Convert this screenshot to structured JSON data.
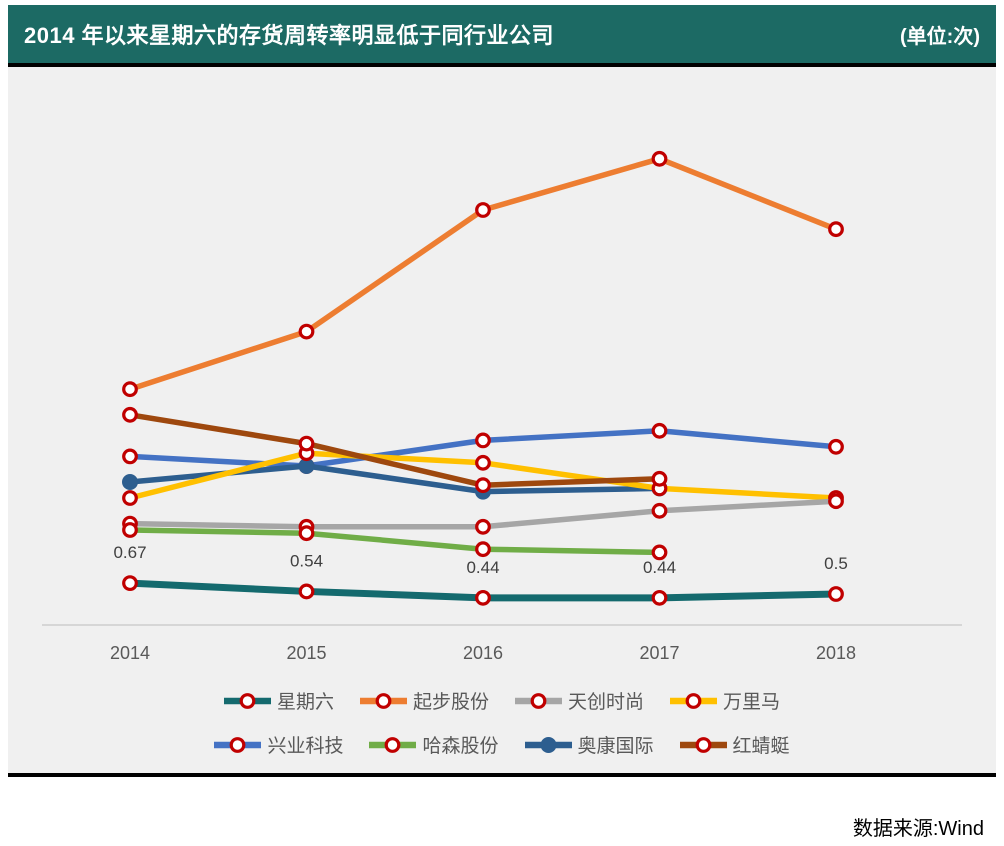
{
  "header": {
    "title": "2014 年以来星期六的存货周转率明显低于同行业公司",
    "unit": "(单位:次)"
  },
  "footer": {
    "source": "数据来源:Wind"
  },
  "colors": {
    "header_bg": "#1c6a64",
    "panel_bg": "#f0f0f0",
    "separator": "#000000",
    "axis_line": "#d6d6d6",
    "tick_label": "#595959",
    "data_label": "#404040",
    "legend_text": "#595959",
    "marker_ring": "#c00000",
    "marker_fill": "#ffffff"
  },
  "chart_data": {
    "type": "line",
    "title": "2014 年以来星期六的存货周转率明显低于同行业公司",
    "unit": "次",
    "categories": [
      "2014",
      "2015",
      "2016",
      "2017",
      "2018"
    ],
    "series": [
      {
        "name": "星期六",
        "color": "#146a6e",
        "marker": "ring",
        "values": [
          0.67,
          0.54,
          0.44,
          0.44,
          0.5
        ]
      },
      {
        "name": "起步股份",
        "color": "#ed7d31",
        "marker": "ring",
        "values": [
          3.7,
          4.6,
          6.5,
          7.3,
          6.2
        ]
      },
      {
        "name": "天创时尚",
        "color": "#a6a6a6",
        "marker": "ring",
        "values": [
          1.6,
          1.55,
          1.55,
          1.8,
          1.95
        ]
      },
      {
        "name": "万里马",
        "color": "#ffc000",
        "marker": "ring",
        "values": [
          2.0,
          2.7,
          2.55,
          2.15,
          2.0
        ]
      },
      {
        "name": "兴业科技",
        "color": "#4472c4",
        "marker": "ring",
        "values": [
          2.65,
          2.5,
          2.9,
          3.05,
          2.8
        ]
      },
      {
        "name": "哈森股份",
        "color": "#70ad47",
        "marker": "ring",
        "values": [
          1.5,
          1.45,
          1.2,
          1.15,
          null
        ]
      },
      {
        "name": "奥康国际",
        "color": "#2d5e8f",
        "marker": "filled",
        "values": [
          2.25,
          2.5,
          2.1,
          2.15,
          null
        ]
      },
      {
        "name": "红蜻蜓",
        "color": "#9e480e",
        "marker": "ring",
        "values": [
          3.3,
          2.85,
          2.2,
          2.3,
          null
        ]
      }
    ],
    "data_labels": {
      "series": "星期六",
      "values": [
        "0.67",
        "0.54",
        "0.44",
        "0.44",
        "0.5"
      ]
    },
    "ylim": [
      0,
      8.7
    ],
    "grid": false,
    "legend_position": "bottom"
  }
}
